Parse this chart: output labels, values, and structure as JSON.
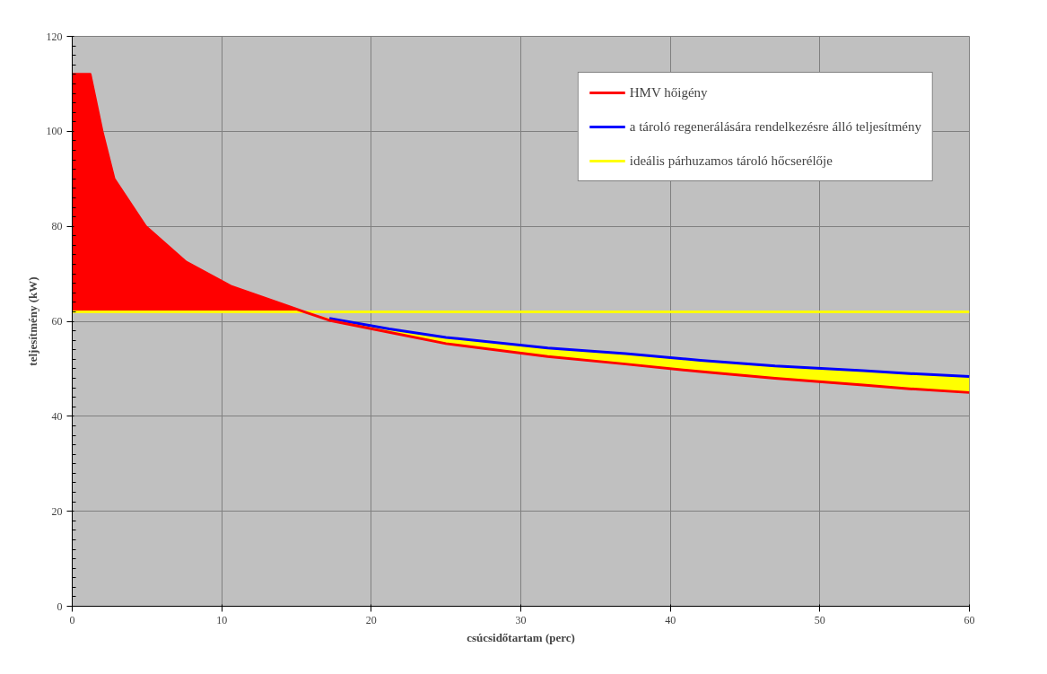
{
  "chart_data": {
    "type": "line",
    "xlabel": "csúcsidőtartam (perc)",
    "ylabel": "teljesítmény (kW)",
    "xlim": [
      0,
      60
    ],
    "xticks": [
      0,
      10,
      20,
      30,
      40,
      50,
      60
    ],
    "ylim": [
      0,
      120
    ],
    "yticks": [
      0,
      20,
      40,
      60,
      80,
      100,
      120
    ],
    "grid": true,
    "legend": "top right",
    "marker": "none",
    "line_style": "solid",
    "series": [
      {
        "name": "HMV hőigény",
        "color": "#ff0000",
        "x": [
          0,
          1.2,
          2,
          2.8,
          4.9,
          7.6,
          10.6,
          13.7,
          15.5,
          17.2,
          21.2,
          25,
          31.8,
          37,
          42,
          47,
          52.9,
          56,
          60
        ],
        "values": [
          112,
          112,
          100,
          90,
          80,
          72.5,
          67.4,
          64,
          62,
          60.2,
          57.7,
          55.3,
          52.6,
          51,
          49.4,
          48,
          46.6,
          45.8,
          45
        ],
        "lower": [
          62,
          62,
          62,
          62,
          62,
          62,
          62,
          62,
          62,
          null,
          null,
          null,
          null,
          null,
          null,
          null,
          null,
          null,
          null
        ],
        "upper": [
          112,
          112,
          100,
          90,
          80,
          72.5,
          67.4,
          64,
          62,
          null,
          null,
          null,
          null,
          null,
          null,
          null,
          null,
          null,
          null
        ]
      },
      {
        "name": "a tároló regenerálására rendelkezésre álló teljesítmény",
        "color": "#0000ff",
        "x": [
          17.2,
          21.2,
          25,
          31.8,
          37,
          42,
          47,
          52.9,
          56,
          60
        ],
        "values": [
          60.6,
          58.4,
          56.6,
          54.4,
          53.2,
          51.8,
          50.6,
          49.6,
          49,
          48.4
        ]
      },
      {
        "name": "ideális párhuzamos tároló hőcserélője",
        "color": "#ffff00",
        "x": [
          0,
          1.2,
          2,
          2.8,
          4.9,
          7.6,
          10.6,
          13.7,
          15.5,
          17.2,
          21.2,
          25,
          31.8,
          37,
          42,
          47,
          52.9,
          56,
          60
        ],
        "values": [
          62,
          62,
          62,
          62,
          62,
          62,
          62,
          62,
          62,
          62,
          62,
          62,
          62,
          62,
          62,
          62,
          62,
          62,
          62
        ],
        "lower": [
          null,
          null,
          null,
          null,
          null,
          null,
          null,
          null,
          62,
          60.2,
          57.7,
          55.3,
          52.6,
          51,
          49.4,
          48,
          46.6,
          45.8,
          45
        ],
        "upper": [
          null,
          null,
          null,
          null,
          null,
          null,
          null,
          null,
          62,
          60.6,
          58.4,
          56.6,
          54.4,
          53.2,
          51.8,
          50.6,
          49.6,
          49,
          48.4
        ]
      }
    ]
  }
}
